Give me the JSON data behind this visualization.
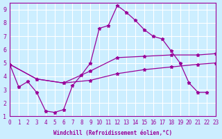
{
  "xlabel": "Windchill (Refroidissement éolien,°C)",
  "background_color": "#cceeff",
  "grid_color": "#ffffff",
  "line_color": "#990099",
  "xlim": [
    0,
    23
  ],
  "ylim": [
    1,
    9.5
  ],
  "xticks": [
    0,
    1,
    2,
    3,
    4,
    5,
    6,
    7,
    8,
    9,
    10,
    11,
    12,
    13,
    14,
    15,
    16,
    17,
    18,
    19,
    20,
    21,
    22,
    23
  ],
  "yticks": [
    1,
    2,
    3,
    4,
    5,
    6,
    7,
    8,
    9
  ],
  "line1_x": [
    0,
    1,
    2,
    3,
    4,
    5,
    6,
    7,
    8,
    9,
    10,
    11,
    12,
    13,
    14,
    15,
    16,
    17,
    18,
    19,
    20,
    21,
    22
  ],
  "line1_y": [
    4.9,
    3.2,
    3.6,
    2.8,
    1.4,
    1.3,
    1.5,
    3.3,
    4.1,
    5.0,
    7.6,
    7.8,
    9.3,
    8.8,
    8.2,
    7.5,
    7.0,
    6.8,
    5.9,
    5.0,
    3.5,
    2.8,
    2.8
  ],
  "line2_x": [
    0,
    3,
    6,
    9,
    12,
    15,
    18,
    21,
    23
  ],
  "line2_y": [
    4.9,
    3.8,
    3.5,
    4.4,
    5.4,
    5.5,
    5.6,
    5.6,
    5.7
  ],
  "line3_x": [
    0,
    3,
    6,
    9,
    12,
    15,
    18,
    21,
    23
  ],
  "line3_y": [
    4.9,
    3.8,
    3.5,
    3.7,
    4.2,
    4.5,
    4.7,
    4.9,
    5.0
  ]
}
